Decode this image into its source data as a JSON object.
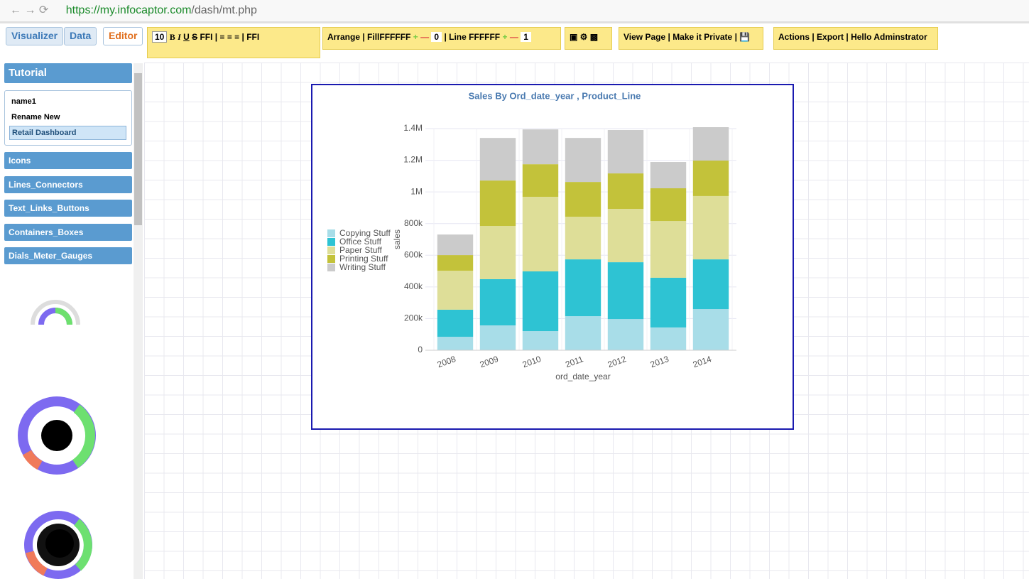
{
  "browser": {
    "url_host": "https://my.infocaptor.com",
    "url_path": "/dash/mt.php"
  },
  "tabs": [
    "Visualizer",
    "Data",
    "Editor"
  ],
  "toolbar": {
    "font_size": "10",
    "bold": "B",
    "italic": "I",
    "underline": "U",
    "strike": "S",
    "font1": "FFI",
    "font2": "FFI",
    "arrange": "Arrange",
    "fill_label": "Fill",
    "fill_value": "FFFFFF",
    "fill_width": "0",
    "line_label": "Line",
    "line_value": "FFFFFF",
    "line_width": "1",
    "view_page": "View Page",
    "make_private": "Make it Private",
    "actions": "Actions",
    "export": "Export",
    "hello": "Hello Adminstrator"
  },
  "sidebar": {
    "header": "Tutorial",
    "pages": [
      "name1",
      "Rename New",
      "Retail Dashboard"
    ],
    "sections": [
      "Icons",
      "Lines_Connectors",
      "Text_Links_Buttons",
      "Containers_Boxes",
      "Dials_Meter_Gauges"
    ]
  },
  "chart_data": {
    "type": "stacked_bar",
    "title": "Sales By Ord_date_year , Product_Line",
    "xlabel": "ord_date_year",
    "ylabel": "sales",
    "categories": [
      "2008",
      "2009",
      "2010",
      "2011",
      "2012",
      "2013",
      "2014"
    ],
    "series": [
      {
        "name": "Copying Stuff",
        "color": "#a8dde8",
        "values": [
          85000,
          157000,
          121000,
          215000,
          197000,
          144000,
          260000
        ]
      },
      {
        "name": "Office Stuff",
        "color": "#2ec3d3",
        "values": [
          171000,
          292000,
          377000,
          359000,
          359000,
          314000,
          314000
        ]
      },
      {
        "name": "Paper Stuff",
        "color": "#dede98",
        "values": [
          246000,
          336000,
          471000,
          269000,
          337000,
          358000,
          400000
        ]
      },
      {
        "name": "Printing Stuff",
        "color": "#c3c23a",
        "values": [
          99000,
          287000,
          206000,
          220000,
          224000,
          207000,
          224000
        ]
      },
      {
        "name": "Writing Stuff",
        "color": "#cbcbcb",
        "values": [
          130000,
          269000,
          220000,
          278000,
          274000,
          166000,
          211000
        ]
      }
    ],
    "ylim": [
      0,
      1400000
    ],
    "yticks": [
      0,
      {
        "value": 200000,
        "label": "200k"
      },
      {
        "value": 400000,
        "label": "400k"
      },
      {
        "value": 600000,
        "label": "600k"
      },
      {
        "value": 800000,
        "label": "800k"
      },
      {
        "value": 1000000,
        "label": "1M"
      },
      {
        "value": 1200000,
        "label": "1.2M"
      },
      {
        "value": 1400000,
        "label": "1.4M"
      }
    ],
    "grid": true,
    "legend": "left"
  }
}
